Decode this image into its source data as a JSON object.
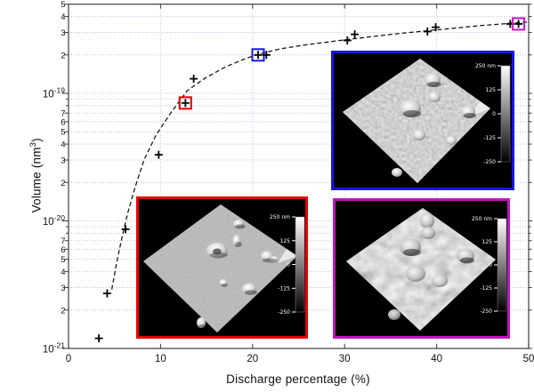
{
  "chart_data": {
    "type": "scatter",
    "title": "",
    "xlabel": "Discharge percentage (%)",
    "ylabel": {
      "text": "Volume (nm",
      "sup": "3",
      "close": ")"
    },
    "x_range": [
      0,
      50
    ],
    "x_ticks": [
      0,
      10,
      20,
      30,
      40,
      50
    ],
    "y_scale": "log",
    "y_range": [
      1e-21,
      5e-19
    ],
    "y_major_ticks": [
      1e-19,
      1e-20,
      1e-21
    ],
    "y_minor_labeled": [
      2,
      3,
      4,
      5,
      6,
      7
    ],
    "grid": true,
    "legend": "none",
    "marker": "plus",
    "points": [
      {
        "x": 3.3,
        "y": 1.2e-21
      },
      {
        "x": 4.2,
        "y": 2.7e-21
      },
      {
        "x": 6.2,
        "y": 8.6e-21
      },
      {
        "x": 9.8,
        "y": 3.3e-20
      },
      {
        "x": 12.7,
        "y": 8.4e-20,
        "box": "red"
      },
      {
        "x": 13.6,
        "y": 1.3e-19
      },
      {
        "x": 20.6,
        "y": 2e-19,
        "box": "blue"
      },
      {
        "x": 21.5,
        "y": 2e-19
      },
      {
        "x": 30.3,
        "y": 2.6e-19
      },
      {
        "x": 31.1,
        "y": 2.9e-19
      },
      {
        "x": 39.0,
        "y": 3.05e-19
      },
      {
        "x": 39.9,
        "y": 3.3e-19
      },
      {
        "x": 48.0,
        "y": 3.5e-19
      },
      {
        "x": 48.9,
        "y": 3.5e-19,
        "box": "magenta"
      }
    ],
    "fit_curve": {
      "style": "dashed",
      "color": "#111111",
      "points": [
        [
          4.7,
          2.9e-21
        ],
        [
          5.2,
          4.6e-21
        ],
        [
          5.8,
          7.4e-21
        ],
        [
          6.5,
          1.2e-20
        ],
        [
          7.3,
          1.9e-20
        ],
        [
          8.2,
          3e-20
        ],
        [
          9.5,
          4.7e-20
        ],
        [
          11.1,
          7e-20
        ],
        [
          12.9,
          1.05e-19
        ],
        [
          14.8,
          1.31e-19
        ],
        [
          16.9,
          1.59e-19
        ],
        [
          18.7,
          1.81e-19
        ],
        [
          20.6,
          2.03e-19
        ],
        [
          23.0,
          2.23e-19
        ],
        [
          25.4,
          2.38e-19
        ],
        [
          27.9,
          2.51e-19
        ],
        [
          30.3,
          2.64e-19
        ],
        [
          32.7,
          2.77e-19
        ],
        [
          35.1,
          2.9e-19
        ],
        [
          37.5,
          3.02e-19
        ],
        [
          39.9,
          3.14e-19
        ],
        [
          42.4,
          3.27e-19
        ],
        [
          44.8,
          3.4e-19
        ],
        [
          47.2,
          3.5e-19
        ],
        [
          48.9,
          3.59e-19
        ],
        [
          50.0,
          3.62e-19
        ]
      ]
    }
  },
  "colors": {
    "grid": "#b9bfec",
    "frame": "#4c4c4c",
    "tick": "#3c3c3c",
    "marker": "#000000",
    "red": "#e60000",
    "blue": "#1616e0",
    "magenta": "#bf16bf"
  },
  "insets": {
    "red": {
      "border_color": "#e60000",
      "image": "afm-3d-topography-smooth-surface-few-particles",
      "colorbar_labels": [
        "250 nm",
        "125",
        "0",
        "-125",
        "-250"
      ]
    },
    "blue": {
      "border_color": "#1616e0",
      "image": "afm-3d-topography-dense-small-grains",
      "colorbar_labels": [
        "250 nm",
        "125",
        "0",
        "-125",
        "-250"
      ]
    },
    "magenta": {
      "border_color": "#bf16bf",
      "image": "afm-3d-topography-rough-surface-large-mounds",
      "colorbar_labels": [
        "250 nm",
        "125",
        "0",
        "-125",
        "-250"
      ]
    }
  }
}
